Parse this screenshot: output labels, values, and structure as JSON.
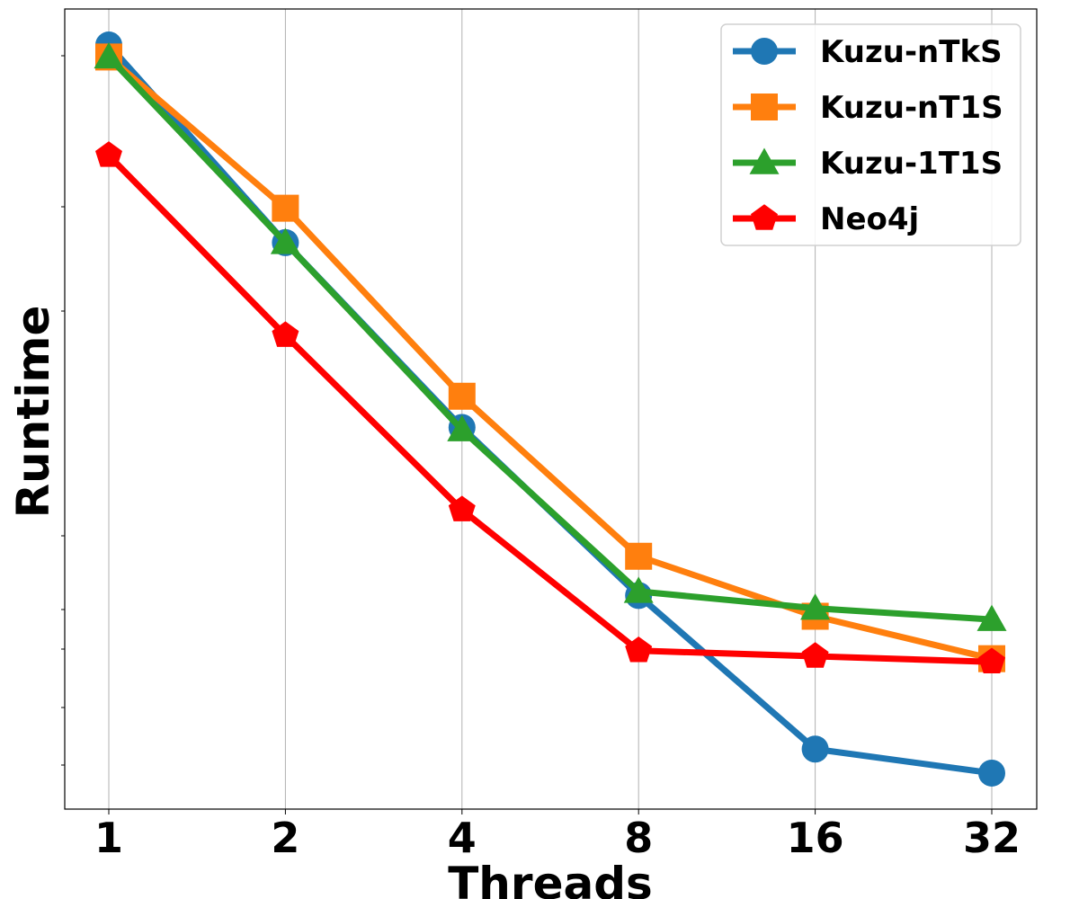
{
  "chart_data": {
    "type": "line",
    "title": "",
    "xlabel": "Threads",
    "ylabel": "Runtime",
    "x_scale": "log2",
    "y_scale": "log",
    "y_ticks_unlabeled": true,
    "grid": "vertical",
    "legend_position": "top-right",
    "categories": [
      "1",
      "2",
      "4",
      "8",
      "16",
      "32"
    ],
    "ylim": [
      0.0,
      1.0
    ],
    "series": [
      {
        "name": "Kuzu-nTkS",
        "color": "#1f77b4",
        "marker": "circle",
        "values": [
          0.955,
          0.708,
          0.477,
          0.267,
          0.075,
          0.045
        ]
      },
      {
        "name": "Kuzu-nT1S",
        "color": "#ff7f0e",
        "marker": "square",
        "values": [
          0.94,
          0.751,
          0.516,
          0.316,
          0.241,
          0.188
        ]
      },
      {
        "name": "Kuzu-1T1S",
        "color": "#2ca02c",
        "marker": "triangle",
        "values": [
          0.94,
          0.708,
          0.474,
          0.272,
          0.251,
          0.237
        ]
      },
      {
        "name": "Neo4j",
        "color": "#ff0000",
        "marker": "pentagon",
        "values": [
          0.817,
          0.592,
          0.374,
          0.198,
          0.191,
          0.184
        ]
      }
    ]
  }
}
